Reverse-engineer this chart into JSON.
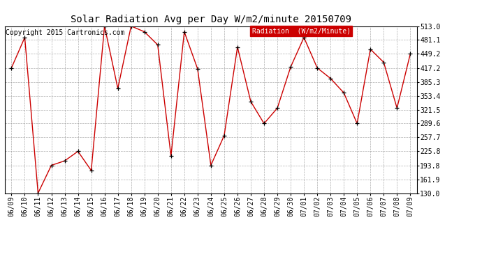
{
  "title": "Solar Radiation Avg per Day W/m2/minute 20150709",
  "copyright": "Copyright 2015 Cartronics.com",
  "legend_label": "Radiation  (W/m2/Minute)",
  "dates": [
    "06/09",
    "06/10",
    "06/11",
    "06/12",
    "06/13",
    "06/14",
    "06/15",
    "06/16",
    "06/17",
    "06/18",
    "06/19",
    "06/20",
    "06/21",
    "06/22",
    "06/23",
    "06/24",
    "06/25",
    "06/26",
    "06/27",
    "06/28",
    "06/29",
    "06/30",
    "07/01",
    "07/02",
    "07/03",
    "07/04",
    "07/05",
    "07/06",
    "07/07",
    "07/08",
    "07/09"
  ],
  "values": [
    417.2,
    487.0,
    130.0,
    193.8,
    204.0,
    225.8,
    182.0,
    513.0,
    370.0,
    513.0,
    500.0,
    470.0,
    215.0,
    500.0,
    415.0,
    193.8,
    262.0,
    465.0,
    340.0,
    289.6,
    325.0,
    419.2,
    487.0,
    417.2,
    393.0,
    360.0,
    289.6,
    460.0,
    430.0,
    325.0,
    449.2
  ],
  "ylim": [
    130.0,
    513.0
  ],
  "yticks": [
    130.0,
    161.9,
    193.8,
    225.8,
    257.7,
    289.6,
    321.5,
    353.4,
    385.3,
    417.2,
    449.2,
    481.1,
    513.0
  ],
  "line_color": "#cc0000",
  "marker_color": "#000000",
  "bg_color": "#ffffff",
  "grid_color": "#999999",
  "legend_bg": "#cc0000",
  "legend_text_color": "#ffffff",
  "title_fontsize": 10,
  "copyright_fontsize": 7,
  "tick_fontsize": 7,
  "legend_fontsize": 7
}
